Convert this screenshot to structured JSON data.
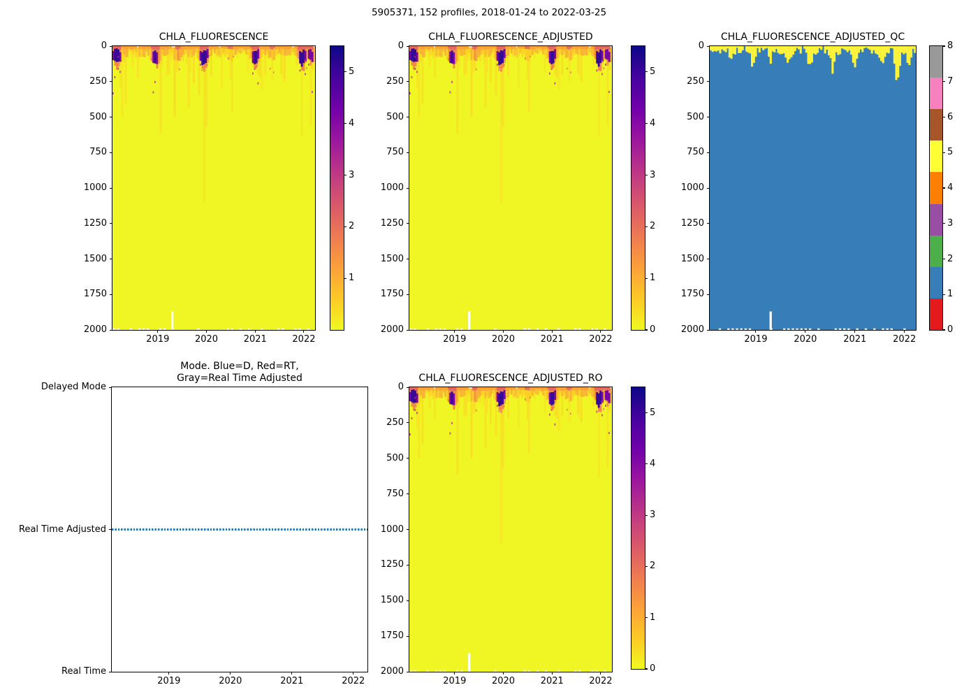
{
  "figure": {
    "suptitle": "5905371, 152 profiles, 2018-01-24 to 2022-03-25",
    "platform_id": "5905371",
    "n_profiles": 152,
    "date_start": "2018-01-24",
    "date_end": "2022-03-25"
  },
  "palette": {
    "plasma_r_stops": [
      "#0d0887",
      "#46039f",
      "#7201a8",
      "#9c179e",
      "#bd3786",
      "#d8576b",
      "#ed7953",
      "#fb9f3a",
      "#fdc926",
      "#f0f921"
    ],
    "heatmap_background": "#f0f524",
    "qc_background": "#377eb8",
    "qc_surface_patch": "#fdf23b",
    "qc_colorbar_colors": [
      "#e41a1c",
      "#377eb8",
      "#4daf4a",
      "#984ea3",
      "#ff7f00",
      "#ffff33",
      "#a65628",
      "#f781bf",
      "#999999"
    ],
    "mode_line": "#1f77b4",
    "missing_data": "#ffffff"
  },
  "chart_data": [
    {
      "type": "heatmap",
      "title": "CHLA_FLUORESCENCE",
      "x_range": [
        2018.07,
        2022.23
      ],
      "x_ticks": [
        "2019",
        "2020",
        "2021",
        "2022"
      ],
      "y_ticks": [
        "0",
        "250",
        "500",
        "750",
        "1000",
        "1250",
        "1500",
        "1750",
        "2000"
      ],
      "ylim": [
        2000,
        0
      ],
      "colormap": "plasma_r",
      "clim": [
        0,
        5.5
      ],
      "colorbar_ticks": [
        1,
        2,
        3,
        4,
        5
      ],
      "background_value": 0.15,
      "bloom_times": [
        {
          "time": 2018.16,
          "intensity": 5.0
        },
        {
          "time": 2018.95,
          "intensity": 4.6
        },
        {
          "time": 2019.42,
          "intensity": 2.6
        },
        {
          "time": 2019.95,
          "intensity": 5.2
        },
        {
          "time": 2020.5,
          "intensity": 2.2
        },
        {
          "time": 2021.0,
          "intensity": 4.8
        },
        {
          "time": 2021.35,
          "intensity": 2.4
        },
        {
          "time": 2021.97,
          "intensity": 5.4
        },
        {
          "time": 2022.15,
          "intensity": 3.5
        }
      ],
      "bloom_layer_depth_m": [
        0,
        150
      ],
      "streaks_reach_depth_m": 900,
      "data_gap": {
        "time": 2019.3,
        "depth_range_m": [
          1870,
          2000
        ]
      }
    },
    {
      "type": "heatmap",
      "title": "CHLA_FLUORESCENCE_ADJUSTED",
      "x_range": [
        2018.07,
        2022.23
      ],
      "x_ticks": [
        "2019",
        "2020",
        "2021",
        "2022"
      ],
      "y_ticks": [
        "0",
        "250",
        "500",
        "750",
        "1000",
        "1250",
        "1500",
        "1750",
        "2000"
      ],
      "ylim": [
        2000,
        0
      ],
      "colormap": "plasma_r",
      "clim": [
        0,
        5.5
      ],
      "colorbar_ticks": [
        0,
        1,
        2,
        3,
        4,
        5
      ],
      "background_value": 0.15,
      "bloom_times": [
        {
          "time": 2018.16,
          "intensity": 5.0
        },
        {
          "time": 2018.95,
          "intensity": 4.6
        },
        {
          "time": 2019.42,
          "intensity": 2.6
        },
        {
          "time": 2019.95,
          "intensity": 5.2
        },
        {
          "time": 2020.5,
          "intensity": 2.2
        },
        {
          "time": 2021.0,
          "intensity": 4.8
        },
        {
          "time": 2021.35,
          "intensity": 2.4
        },
        {
          "time": 2021.97,
          "intensity": 5.4
        },
        {
          "time": 2022.15,
          "intensity": 3.5
        }
      ],
      "bloom_layer_depth_m": [
        0,
        150
      ],
      "streaks_reach_depth_m": 900,
      "data_gap": {
        "time": 2019.3,
        "depth_range_m": [
          1870,
          2000
        ]
      }
    },
    {
      "type": "heatmap",
      "title": "CHLA_FLUORESCENCE_ADJUSTED_QC",
      "x_range": [
        2018.07,
        2022.23
      ],
      "x_ticks": [
        "2019",
        "2020",
        "2021",
        "2022"
      ],
      "y_ticks": [
        "0",
        "250",
        "500",
        "750",
        "1000",
        "1250",
        "1500",
        "1750",
        "2000"
      ],
      "ylim": [
        2000,
        0
      ],
      "colormap": "Set1 (discrete QC flags)",
      "clim": [
        0,
        8
      ],
      "colorbar_ticks": [
        0,
        1,
        2,
        3,
        4,
        5,
        6,
        7,
        8
      ],
      "deep_qc_value": 1,
      "surface_qc_value": 5,
      "surface_patch_depth_m": [
        10,
        100
      ],
      "deep_tongues": [
        {
          "time": 2018.5,
          "depth_m": 90
        },
        {
          "time": 2018.95,
          "depth_m": 120
        },
        {
          "time": 2019.3,
          "depth_m": 80
        },
        {
          "time": 2019.65,
          "depth_m": 100
        },
        {
          "time": 2020.1,
          "depth_m": 140
        },
        {
          "time": 2020.55,
          "depth_m": 160
        },
        {
          "time": 2021.0,
          "depth_m": 130
        },
        {
          "time": 2021.55,
          "depth_m": 110
        },
        {
          "time": 2021.85,
          "depth_m": 200
        },
        {
          "time": 2022.1,
          "depth_m": 110
        }
      ],
      "data_gap": {
        "time": 2019.3,
        "depth_range_m": [
          1870,
          2000
        ]
      }
    },
    {
      "type": "line",
      "title": "Mode. Blue=D, Red=RT,\nGray=Real Time Adjusted",
      "x_range": [
        2018.07,
        2022.23
      ],
      "x_ticks": [
        "2019",
        "2020",
        "2021",
        "2022"
      ],
      "y_categories": [
        "Delayed Mode",
        "Real Time Adjusted",
        "Real Time"
      ],
      "series": [
        {
          "name": "processing-mode",
          "constant_value": "Real Time Adjusted",
          "color": "#1f77b4",
          "linestyle": "dotted",
          "covers": "entire record"
        }
      ]
    },
    {
      "type": "heatmap",
      "title": "CHLA_FLUORESCENCE_ADJUSTED_RO",
      "x_range": [
        2018.07,
        2022.23
      ],
      "x_ticks": [
        "2019",
        "2020",
        "2021",
        "2022"
      ],
      "y_ticks": [
        "0",
        "250",
        "500",
        "750",
        "1000",
        "1250",
        "1500",
        "1750",
        "2000"
      ],
      "ylim": [
        2000,
        0
      ],
      "colormap": "plasma_r",
      "clim": [
        0,
        5.5
      ],
      "colorbar_ticks": [
        0,
        1,
        2,
        3,
        4,
        5
      ],
      "background_value": 0.15,
      "bloom_times": [
        {
          "time": 2018.16,
          "intensity": 5.0
        },
        {
          "time": 2018.95,
          "intensity": 4.6
        },
        {
          "time": 2019.42,
          "intensity": 2.6
        },
        {
          "time": 2019.95,
          "intensity": 5.2
        },
        {
          "time": 2020.5,
          "intensity": 2.2
        },
        {
          "time": 2021.0,
          "intensity": 4.8
        },
        {
          "time": 2021.35,
          "intensity": 2.4
        },
        {
          "time": 2021.97,
          "intensity": 5.4
        },
        {
          "time": 2022.15,
          "intensity": 3.5
        }
      ],
      "bloom_layer_depth_m": [
        0,
        150
      ],
      "streaks_reach_depth_m": 900,
      "data_gap": {
        "time": 2019.3,
        "depth_range_m": [
          1870,
          2000
        ]
      }
    }
  ]
}
